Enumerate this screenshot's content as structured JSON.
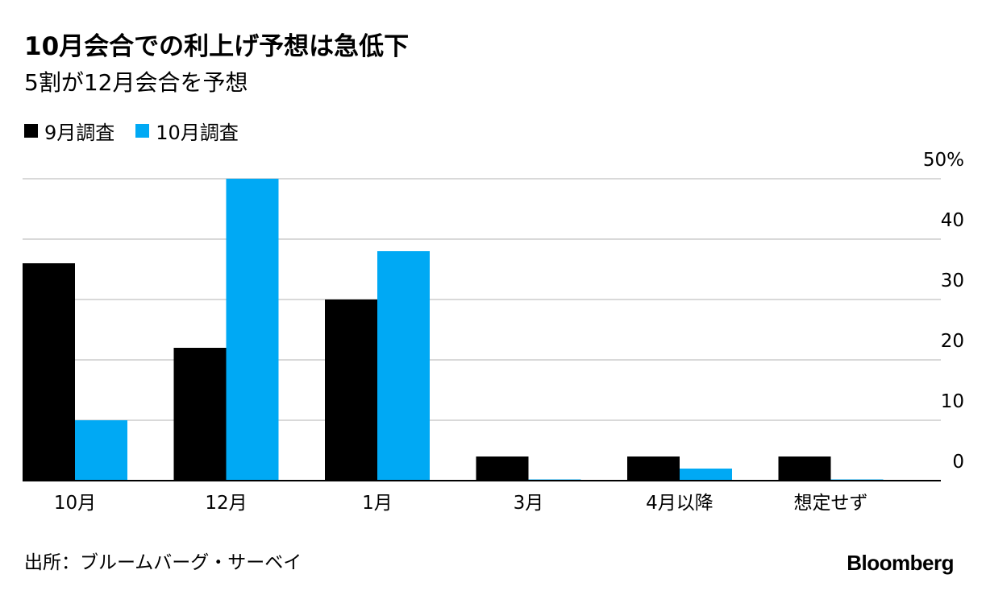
{
  "title": "10月会合での利上げ予想は急低下",
  "subtitle": "5割が12月会合を予想",
  "colors": {
    "series_sep": "#000000",
    "series_oct": "#00a9f4",
    "grid": "#d9d9d9",
    "axis": "#000000"
  },
  "chart_data": {
    "type": "bar",
    "categories": [
      "10月",
      "12月",
      "1月",
      "3月",
      "4月以降",
      "想定せず"
    ],
    "series": [
      {
        "name": "9月調査",
        "values": [
          36,
          22,
          30,
          4,
          4,
          4
        ]
      },
      {
        "name": "10月調査",
        "values": [
          10,
          50,
          38,
          0,
          2,
          0
        ]
      }
    ],
    "ylim": [
      0,
      50
    ],
    "yticks": [
      0,
      10,
      20,
      30,
      40,
      50
    ],
    "ytick_labels": [
      "0",
      "10",
      "20",
      "30",
      "40",
      "50%"
    ],
    "y_axis_side": "right",
    "legend_position": "top-left",
    "title": "10月会合での利上げ予想は急低下",
    "subtitle": "5割が12月会合を予想",
    "xlabel": "",
    "ylabel": ""
  },
  "footer": {
    "source": "出所：ブルームバーグ・サーベイ",
    "brand": "Bloomberg"
  }
}
